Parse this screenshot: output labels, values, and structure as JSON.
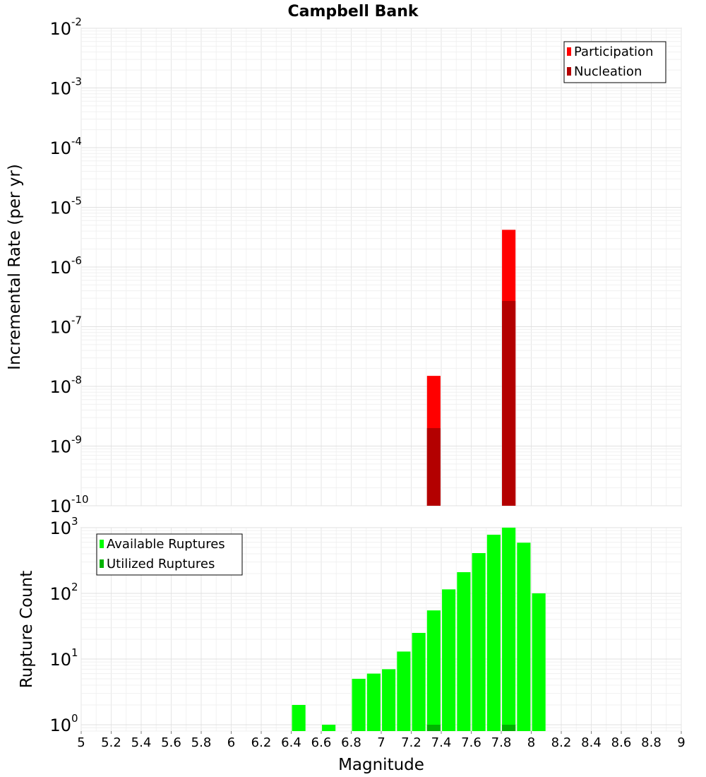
{
  "chart_data": [
    {
      "type": "bar",
      "title": "Campbell Bank",
      "xlabel": "",
      "ylabel": "Incremental Rate (per yr)",
      "y_scale": "log",
      "ylim": [
        1e-10,
        0.01
      ],
      "xlim": [
        5,
        9
      ],
      "y_tick_exponents": [
        -10,
        -9,
        -8,
        -7,
        -6,
        -5,
        -4,
        -3,
        -2
      ],
      "legend_position": "top-right",
      "bar_width": 0.09,
      "series": [
        {
          "name": "Participation",
          "color": "#ff0000",
          "x": [
            7.35,
            7.85
          ],
          "values": [
            1.5e-08,
            4.2e-06
          ]
        },
        {
          "name": "Nucleation",
          "color": "#b30000",
          "x": [
            7.35,
            7.85
          ],
          "values": [
            2e-09,
            2.7e-07
          ]
        }
      ]
    },
    {
      "type": "bar",
      "title": "",
      "xlabel": "Magnitude",
      "ylabel": "Rupture Count",
      "y_scale": "log",
      "ylim": [
        0.8,
        1000
      ],
      "xlim": [
        5,
        9
      ],
      "y_tick_exponents": [
        0,
        1,
        2,
        3
      ],
      "x_ticks": [
        "5",
        "5.2",
        "5.4",
        "5.6",
        "5.8",
        "6",
        "6.2",
        "6.4",
        "6.6",
        "6.8",
        "7",
        "7.2",
        "7.4",
        "7.6",
        "7.8",
        "8",
        "8.2",
        "8.4",
        "8.6",
        "8.8",
        "9"
      ],
      "legend_position": "top-left",
      "bar_width": 0.09,
      "series": [
        {
          "name": "Available Ruptures",
          "color": "#00ff00",
          "x": [
            6.45,
            6.65,
            6.85,
            6.95,
            7.05,
            7.15,
            7.25,
            7.35,
            7.45,
            7.55,
            7.65,
            7.75,
            7.85,
            7.95,
            8.05
          ],
          "values": [
            2,
            1,
            5,
            6,
            7,
            13,
            25,
            55,
            115,
            210,
            410,
            780,
            1000,
            590,
            100
          ]
        },
        {
          "name": "Utilized Ruptures",
          "color": "#00b300",
          "x": [
            7.35,
            7.85
          ],
          "values": [
            1,
            1
          ]
        }
      ]
    }
  ]
}
